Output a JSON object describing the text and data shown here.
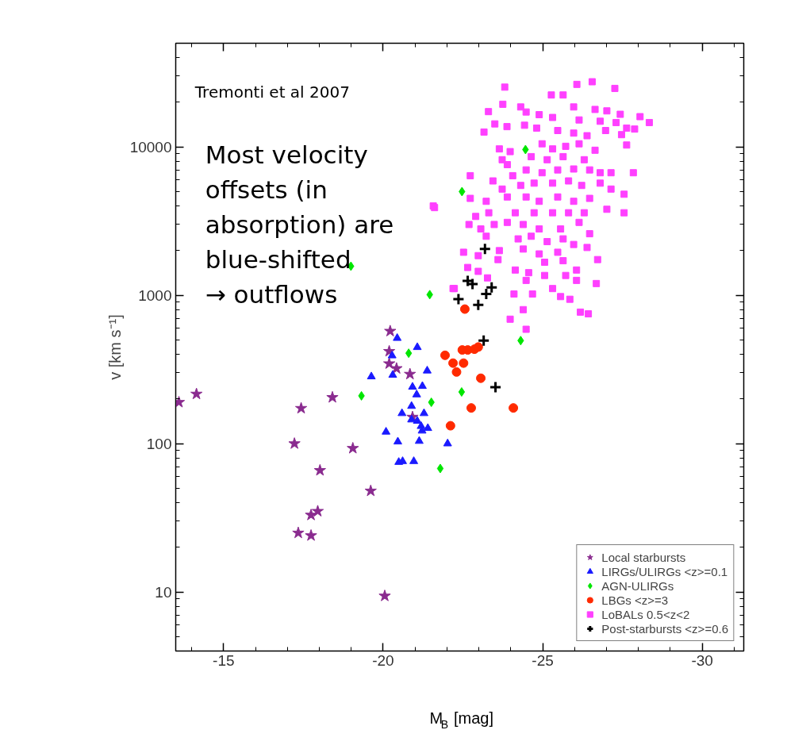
{
  "chart_data": {
    "type": "scatter",
    "xlabel": "M$_{B}$ [mag]",
    "ylabel": "v [km s⁻¹]",
    "annotations": [
      "Tremonti et al 2007",
      "Most velocity\noffsets (in\nabsorption) are\nblue-shifted\n→ outflows"
    ],
    "xlim": [
      -13.5,
      -31.3
    ],
    "xticks": [
      -15,
      -20,
      -25,
      -30
    ],
    "ylim": [
      4,
      50000
    ],
    "yticks": [
      10,
      100,
      1000,
      10000
    ],
    "log": "y",
    "legend": "bottom right",
    "series": [
      {
        "name": "Local starbursts",
        "color": "#8a2b8f",
        "marker": "star",
        "x": [
          -13.6,
          -14.15,
          -18.41,
          -17.43,
          -17.22,
          -19.05,
          -18.02,
          -19.61,
          -17.95,
          -17.74,
          -17.34,
          -17.74,
          -20.05,
          -20.22,
          -20.19,
          -20.19,
          -20.42,
          -20.84,
          -20.92
        ],
        "values": [
          190,
          216,
          205,
          173,
          100,
          93,
          66,
          48,
          35,
          33,
          25,
          24,
          9.4,
          573,
          419,
          346,
          321,
          294,
          151
        ]
      },
      {
        "name": "LIRGs/ULIRGs <z>=0.1",
        "color": "#1a1aff",
        "marker": "triangle",
        "x": [
          -20.44,
          -21.07,
          -20.28,
          -21.38,
          -19.63,
          -20.3,
          -20.92,
          -21.23,
          -21.05,
          -20.89,
          -20.59,
          -21.28,
          -20.89,
          -21.07,
          -21.19,
          -21.4,
          -21.22,
          -20.09,
          -20.46,
          -21.13,
          -22.02,
          -20.49,
          -20.61,
          -20.96
        ],
        "values": [
          514,
          446,
          392,
          310,
          283,
          290,
          241,
          244,
          214,
          179,
          160,
          160,
          145,
          142,
          131,
          127,
          122,
          120,
          103,
          104,
          100,
          75,
          76,
          76
        ]
      },
      {
        "name": "AGN-ULIRGs",
        "color": "#00e600",
        "marker": "diamond",
        "x": [
          -22.47,
          -24.46,
          -21.46,
          -20.8,
          -19.32,
          -21.51,
          -22.46,
          -21.79,
          -24.31,
          -18.99
        ],
        "values": [
          5000,
          9600,
          1010,
          407,
          210,
          190,
          223,
          68,
          495,
          1570
        ]
      },
      {
        "name": "LBGs <z>=3",
        "color": "#ff2a00",
        "marker": "circle",
        "x": [
          -22.56,
          -21.94,
          -22.48,
          -22.65,
          -22.86,
          -22.98,
          -22.19,
          -22.52,
          -22.3,
          -23.06,
          -22.76,
          -24.08,
          -22.11
        ],
        "values": [
          807,
          394,
          428,
          428,
          433,
          448,
          349,
          349,
          304,
          276,
          174,
          174,
          132
        ]
      },
      {
        "name": "LoBALs 0.5<z<2",
        "color": "#ff40ff",
        "marker": "square",
        "x": [
          -23.81,
          -26.07,
          -26.55,
          -27.26,
          -23.75,
          -24.31,
          -25.27,
          -25.64,
          -25.97,
          -26.64,
          -27.01,
          -27.43,
          -28.05,
          -28.34,
          -23.3,
          -23.5,
          -23.88,
          -23.16,
          -24.48,
          -24.89,
          -25.31,
          -26.14,
          -26.8,
          -27.3,
          -27.63,
          -27.88,
          -24.43,
          -24.81,
          -25.47,
          -25.97,
          -26.39,
          -26.97,
          -27.47,
          -27.63,
          -23.64,
          -23.98,
          -24.98,
          -25.31,
          -25.72,
          -26.14,
          -26.64,
          -23.73,
          -24.64,
          -25.14,
          -25.64,
          -26.3,
          -23.89,
          -24.48,
          -24.98,
          -25.47,
          -25.97,
          -26.47,
          -26.8,
          -27.14,
          -27.84,
          -22.73,
          -23.44,
          -24.06,
          -23.73,
          -24.31,
          -24.73,
          -25.31,
          -25.81,
          -26.22,
          -26.8,
          -27.14,
          -27.55,
          -22.73,
          -23.23,
          -23.89,
          -24.48,
          -24.89,
          -25.47,
          -25.97,
          -26.47,
          -27.01,
          -27.55,
          -21.61,
          -22.9,
          -23.31,
          -24.14,
          -24.73,
          -25.31,
          -25.81,
          -26.3,
          -22.69,
          -23.06,
          -23.48,
          -23.89,
          -24.39,
          -24.89,
          -25.56,
          -26.14,
          -26.47,
          -23.23,
          -24.23,
          -24.64,
          -25.14,
          -25.64,
          -25.97,
          -26.39,
          -22.52,
          -22.98,
          -23.64,
          -24.39,
          -24.89,
          -25.47,
          -26.72,
          -22.65,
          -22.98,
          -23.6,
          -24.14,
          -24.56,
          -25.06,
          -25.64,
          -26.06,
          -22.23,
          -23.27,
          -24.48,
          -25.06,
          -25.31,
          -25.72,
          -26.06,
          -26.68,
          -24.1,
          -24.68,
          -25.56,
          -25.85,
          -24.39,
          -26.18,
          -26.43,
          -21.57,
          -23.98,
          -24.48,
          -22.19
        ],
        "values": [
          25300,
          26400,
          27500,
          24800,
          19400,
          18600,
          22400,
          22400,
          18600,
          17900,
          17500,
          16600,
          16000,
          14600,
          17300,
          14300,
          13700,
          12600,
          17200,
          16500,
          15800,
          15200,
          14900,
          14600,
          13400,
          13200,
          14000,
          13400,
          12900,
          12400,
          11900,
          12900,
          12100,
          10300,
          9700,
          9300,
          10500,
          9700,
          10100,
          10500,
          9500,
          8200,
          8600,
          8200,
          8600,
          8200,
          7600,
          7000,
          6700,
          7000,
          7100,
          7000,
          6700,
          6700,
          6700,
          6400,
          5900,
          6400,
          5200,
          5500,
          5700,
          5700,
          5900,
          5500,
          5700,
          5200,
          4800,
          4500,
          4300,
          4600,
          4600,
          4300,
          4600,
          4300,
          4500,
          3800,
          3600,
          3900,
          3400,
          3600,
          3600,
          3600,
          3600,
          3600,
          3600,
          3000,
          2800,
          3000,
          3100,
          3000,
          2800,
          2800,
          3100,
          2600,
          2500,
          2400,
          2500,
          2300,
          2400,
          2200,
          2100,
          1950,
          1850,
          2000,
          2050,
          1900,
          1950,
          1740,
          1540,
          1450,
          1740,
          1480,
          1420,
          1670,
          1710,
          1480,
          1110,
          1310,
          1260,
          1360,
          1110,
          1360,
          1260,
          1200,
          1020,
          1020,
          980,
          940,
          800,
          770,
          750,
          4000,
          690,
          590,
          1110
        ]
      },
      {
        "name": "Post-starbursts <z>=0.6",
        "color": "#000000",
        "marker": "cross",
        "x": [
          -23.19,
          -22.65,
          -22.8,
          -23.4,
          -23.23,
          -22.36,
          -22.98,
          -23.15,
          -23.52
        ],
        "values": [
          2050,
          1250,
          1190,
          1130,
          1020,
          942,
          861,
          495,
          240
        ]
      }
    ]
  }
}
